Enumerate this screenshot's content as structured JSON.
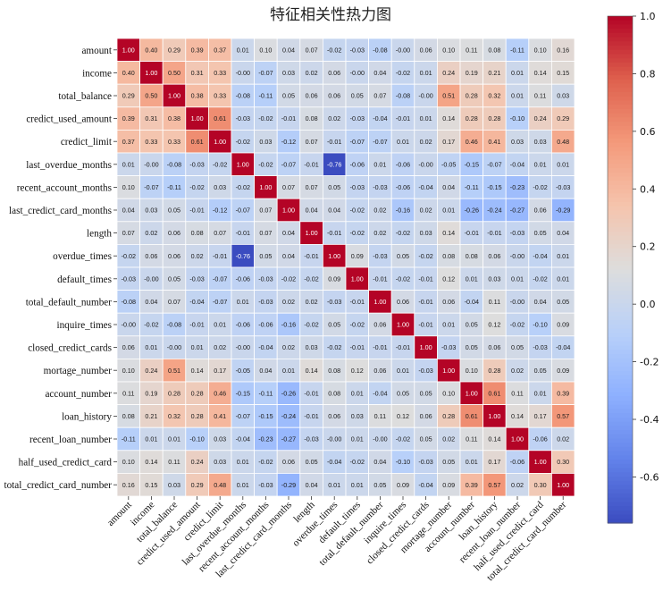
{
  "chart_data": {
    "type": "heatmap",
    "title": "特征相关性热力图",
    "labels": [
      "amount",
      "income",
      "total_balance",
      "credict_used_amount",
      "credict_limit",
      "last_overdue_months",
      "recent_account_months",
      "last_credict_card_months",
      "length",
      "overdue_times",
      "default_times",
      "total_default_number",
      "inquire_times",
      "closed_credict_cards",
      "mortage_number",
      "account_number",
      "loan_history",
      "recent_loan_number",
      "half_used_credict_card",
      "total_credict_card_number"
    ],
    "matrix": [
      [
        1.0,
        0.4,
        0.29,
        0.39,
        0.37,
        0.01,
        0.1,
        0.04,
        0.07,
        -0.02,
        -0.03,
        -0.08,
        -0.0,
        0.06,
        0.1,
        0.11,
        0.08,
        -0.11,
        0.1,
        0.16
      ],
      [
        0.4,
        1.0,
        0.5,
        0.31,
        0.33,
        -0.0,
        -0.07,
        0.03,
        0.02,
        0.06,
        -0.0,
        0.04,
        -0.02,
        0.01,
        0.24,
        0.19,
        0.21,
        0.01,
        0.14,
        0.15
      ],
      [
        0.29,
        0.5,
        1.0,
        0.38,
        0.33,
        -0.08,
        -0.11,
        0.05,
        0.06,
        0.06,
        0.05,
        0.07,
        -0.08,
        -0.0,
        0.51,
        0.28,
        0.32,
        0.01,
        0.11,
        0.03
      ],
      [
        0.39,
        0.31,
        0.38,
        1.0,
        0.61,
        -0.03,
        -0.02,
        -0.01,
        0.08,
        0.02,
        -0.03,
        -0.04,
        -0.01,
        0.01,
        0.14,
        0.28,
        0.28,
        -0.1,
        0.24,
        0.29
      ],
      [
        0.37,
        0.33,
        0.33,
        0.61,
        1.0,
        -0.02,
        0.03,
        -0.12,
        0.07,
        -0.01,
        -0.07,
        -0.07,
        0.01,
        0.02,
        0.17,
        0.46,
        0.41,
        0.03,
        0.03,
        0.48
      ],
      [
        0.01,
        -0.0,
        -0.08,
        -0.03,
        -0.02,
        1.0,
        -0.02,
        -0.07,
        -0.01,
        -0.76,
        -0.06,
        0.01,
        -0.06,
        -0.0,
        -0.05,
        -0.15,
        -0.07,
        -0.04,
        0.01,
        0.01
      ],
      [
        0.1,
        -0.07,
        -0.11,
        -0.02,
        0.03,
        -0.02,
        1.0,
        0.07,
        0.07,
        0.05,
        -0.03,
        -0.03,
        -0.06,
        -0.04,
        0.04,
        -0.11,
        -0.15,
        -0.23,
        -0.02,
        -0.03
      ],
      [
        0.04,
        0.03,
        0.05,
        -0.01,
        -0.12,
        -0.07,
        0.07,
        1.0,
        0.04,
        0.04,
        -0.02,
        0.02,
        -0.16,
        0.02,
        0.01,
        -0.26,
        -0.24,
        -0.27,
        0.06,
        -0.29
      ],
      [
        0.07,
        0.02,
        0.06,
        0.08,
        0.07,
        -0.01,
        0.07,
        0.04,
        1.0,
        -0.01,
        -0.02,
        0.02,
        -0.02,
        0.03,
        0.14,
        -0.01,
        -0.01,
        -0.03,
        0.05,
        0.04
      ],
      [
        -0.02,
        0.06,
        0.06,
        0.02,
        -0.01,
        -0.76,
        0.05,
        0.04,
        -0.01,
        1.0,
        0.09,
        -0.03,
        0.05,
        -0.02,
        0.08,
        0.08,
        0.06,
        -0.0,
        -0.04,
        0.01
      ],
      [
        -0.03,
        -0.0,
        0.05,
        -0.03,
        -0.07,
        -0.06,
        -0.03,
        -0.02,
        -0.02,
        0.09,
        1.0,
        -0.01,
        -0.02,
        -0.01,
        0.12,
        0.01,
        0.03,
        0.01,
        -0.02,
        0.01
      ],
      [
        -0.08,
        0.04,
        0.07,
        -0.04,
        -0.07,
        0.01,
        -0.03,
        0.02,
        0.02,
        -0.03,
        -0.01,
        1.0,
        0.06,
        -0.01,
        0.06,
        -0.04,
        0.11,
        -0.0,
        0.04,
        0.05
      ],
      [
        -0.0,
        -0.02,
        -0.08,
        -0.01,
        0.01,
        -0.06,
        -0.06,
        -0.16,
        -0.02,
        0.05,
        -0.02,
        0.06,
        1.0,
        -0.01,
        0.01,
        0.05,
        0.12,
        -0.02,
        -0.1,
        0.09
      ],
      [
        0.06,
        0.01,
        -0.0,
        0.01,
        0.02,
        -0.0,
        -0.04,
        0.02,
        0.03,
        -0.02,
        -0.01,
        -0.01,
        -0.01,
        1.0,
        -0.03,
        0.05,
        0.06,
        0.05,
        -0.03,
        -0.04
      ],
      [
        0.1,
        0.24,
        0.51,
        0.14,
        0.17,
        -0.05,
        0.04,
        0.01,
        0.14,
        0.08,
        0.12,
        0.06,
        0.01,
        -0.03,
        1.0,
        0.1,
        0.28,
        0.02,
        0.05,
        0.09
      ],
      [
        0.11,
        0.19,
        0.28,
        0.28,
        0.46,
        -0.15,
        -0.11,
        -0.26,
        -0.01,
        0.08,
        0.01,
        -0.04,
        0.05,
        0.05,
        0.1,
        1.0,
        0.61,
        0.11,
        0.01,
        0.39
      ],
      [
        0.08,
        0.21,
        0.32,
        0.28,
        0.41,
        -0.07,
        -0.15,
        -0.24,
        -0.01,
        0.06,
        0.03,
        0.11,
        0.12,
        0.06,
        0.28,
        0.61,
        1.0,
        0.14,
        0.17,
        0.57
      ],
      [
        -0.11,
        0.01,
        0.01,
        -0.1,
        0.03,
        -0.04,
        -0.23,
        -0.27,
        -0.03,
        -0.0,
        0.01,
        -0.0,
        -0.02,
        0.05,
        0.02,
        0.11,
        0.14,
        1.0,
        -0.06,
        0.02
      ],
      [
        0.1,
        0.14,
        0.11,
        0.24,
        0.03,
        0.01,
        -0.02,
        0.06,
        0.05,
        -0.04,
        -0.02,
        0.04,
        -0.1,
        -0.03,
        0.05,
        0.01,
        0.17,
        -0.06,
        1.0,
        0.3
      ],
      [
        0.16,
        0.15,
        0.03,
        0.29,
        0.48,
        0.01,
        -0.03,
        -0.29,
        0.04,
        0.01,
        0.01,
        0.05,
        0.09,
        -0.04,
        0.09,
        0.39,
        0.57,
        0.02,
        0.3,
        1.0
      ]
    ],
    "colorbar": {
      "colormap": "coolwarm",
      "vmin": -0.76,
      "vmax": 1.0,
      "ticks": [
        -0.6,
        -0.4,
        -0.2,
        0.0,
        0.2,
        0.4,
        0.6,
        0.8,
        1.0
      ],
      "tick_labels": [
        "-0.6",
        "-0.4",
        "-0.2",
        "0.0",
        "0.2",
        "0.4",
        "0.6",
        "0.8",
        "1.0"
      ]
    },
    "grid_color": "#ffffff",
    "annotated": true
  }
}
